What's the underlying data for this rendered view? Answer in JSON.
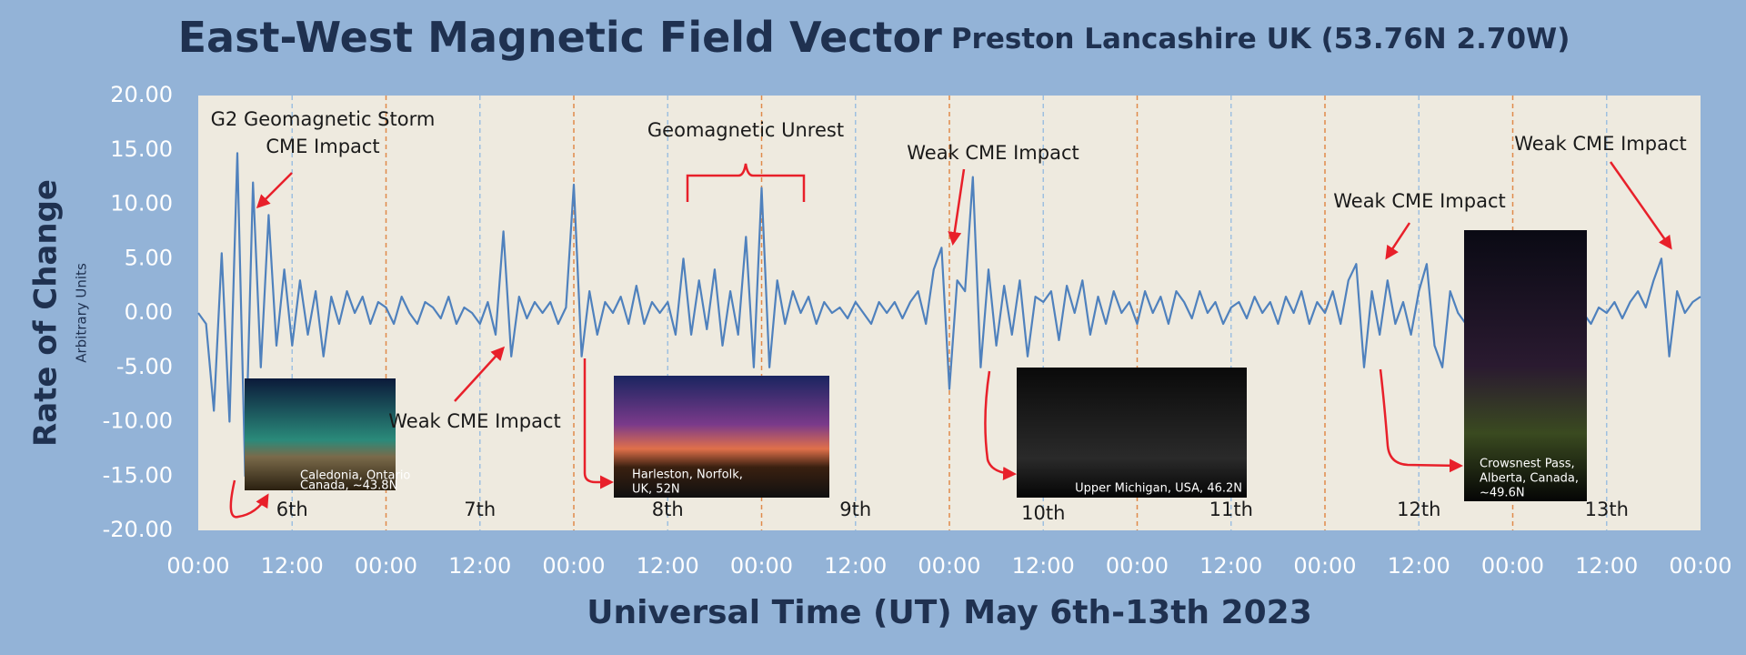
{
  "chart_data": {
    "type": "line",
    "title": "East-West Magnetic Field Vector",
    "subtitle": "Preston Lancashire UK (53.76N 2.70W)",
    "y_label": "Rate of Change",
    "y_sublabel": "Arbitrary Units",
    "x_label": "Universal Time (UT)  May 6th-13th 2023",
    "color": "#4f81bd",
    "grid": true,
    "midnight_grid_color": "#e08a4a",
    "noon_grid_color": "#9ec0e0",
    "ylim": [
      -20,
      20
    ],
    "yticks": [
      {
        "value": 20,
        "label": "20.00"
      },
      {
        "value": 15,
        "label": "15.00"
      },
      {
        "value": 10,
        "label": "10.00"
      },
      {
        "value": 5,
        "label": "5.00"
      },
      {
        "value": 0,
        "label": "0.00"
      },
      {
        "value": -5,
        "label": "-5.00"
      },
      {
        "value": -10,
        "label": "-10.00"
      },
      {
        "value": -15,
        "label": "-15.00"
      },
      {
        "value": -20,
        "label": "-20.00"
      }
    ],
    "xlim": [
      0,
      192
    ],
    "xticks": [
      {
        "value": 0,
        "label": "00:00"
      },
      {
        "value": 12,
        "label": "12:00"
      },
      {
        "value": 24,
        "label": "00:00"
      },
      {
        "value": 36,
        "label": "12:00"
      },
      {
        "value": 48,
        "label": "00:00"
      },
      {
        "value": 60,
        "label": "12:00"
      },
      {
        "value": 72,
        "label": "00:00"
      },
      {
        "value": 84,
        "label": "12:00"
      },
      {
        "value": 96,
        "label": "00:00"
      },
      {
        "value": 108,
        "label": "12:00"
      },
      {
        "value": 120,
        "label": "00:00"
      },
      {
        "value": 132,
        "label": "12:00"
      },
      {
        "value": 144,
        "label": "00:00"
      },
      {
        "value": 156,
        "label": "12:00"
      },
      {
        "value": 168,
        "label": "00:00"
      },
      {
        "value": 180,
        "label": "12:00"
      },
      {
        "value": 192,
        "label": "00:00"
      }
    ],
    "day_labels": [
      "6th",
      "7th",
      "8th",
      "9th",
      "10th",
      "11th",
      "12th",
      "13th"
    ],
    "x": [
      0,
      1,
      2,
      3,
      4,
      5,
      6,
      7,
      8,
      9,
      10,
      11,
      12,
      13,
      14,
      15,
      16,
      17,
      18,
      19,
      20,
      21,
      22,
      23,
      24,
      25,
      26,
      27,
      28,
      29,
      30,
      31,
      32,
      33,
      34,
      35,
      36,
      37,
      38,
      39,
      40,
      41,
      42,
      43,
      44,
      45,
      46,
      47,
      48,
      49,
      50,
      51,
      52,
      53,
      54,
      55,
      56,
      57,
      58,
      59,
      60,
      61,
      62,
      63,
      64,
      65,
      66,
      67,
      68,
      69,
      70,
      71,
      72,
      73,
      74,
      75,
      76,
      77,
      78,
      79,
      80,
      81,
      82,
      83,
      84,
      85,
      86,
      87,
      88,
      89,
      90,
      91,
      92,
      93,
      94,
      95,
      96,
      97,
      98,
      99,
      100,
      101,
      102,
      103,
      104,
      105,
      106,
      107,
      108,
      109,
      110,
      111,
      112,
      113,
      114,
      115,
      116,
      117,
      118,
      119,
      120,
      121,
      122,
      123,
      124,
      125,
      126,
      127,
      128,
      129,
      130,
      131,
      132,
      133,
      134,
      135,
      136,
      137,
      138,
      139,
      140,
      141,
      142,
      143,
      144,
      145,
      146,
      147,
      148,
      149,
      150,
      151,
      152,
      153,
      154,
      155,
      156,
      157,
      158,
      159,
      160,
      161,
      162,
      163,
      164,
      165,
      166,
      167,
      168,
      169,
      170,
      171,
      172,
      173,
      174,
      175,
      176,
      177,
      178,
      179,
      180,
      181,
      182,
      183,
      184,
      185,
      186,
      187,
      188,
      189,
      190,
      191,
      192
    ],
    "values": [
      0,
      -1,
      -9,
      5.5,
      -10,
      14.7,
      -15,
      12,
      -5,
      9,
      -3,
      4,
      -3,
      3,
      -2,
      2,
      -4,
      1.5,
      -1,
      2,
      0,
      1.5,
      -1,
      1,
      0.5,
      -1,
      1.5,
      0,
      -1,
      1,
      0.5,
      -0.5,
      1.5,
      -1,
      0.5,
      0,
      -1,
      1,
      -2,
      7.5,
      -4,
      1.5,
      -0.5,
      1,
      0,
      1,
      -1,
      0.5,
      11.8,
      -4,
      2,
      -2,
      1,
      0,
      1.5,
      -1,
      2.5,
      -1,
      1,
      0,
      1,
      -2,
      5,
      -2,
      3,
      -1.5,
      4,
      -3,
      2,
      -2,
      7,
      -5,
      11.5,
      -5,
      3,
      -1,
      2,
      0,
      1.5,
      -1,
      1,
      0,
      0.5,
      -0.5,
      1,
      0,
      -1,
      1,
      0,
      1,
      -0.5,
      1,
      2,
      -1,
      4,
      6,
      -7,
      3,
      2,
      12.5,
      -5,
      4,
      -3,
      2.5,
      -2,
      3,
      -4,
      1.5,
      1,
      2,
      -2.5,
      2.5,
      0,
      3,
      -2,
      1.5,
      -1,
      2,
      0,
      1,
      -1,
      2,
      0,
      1.5,
      -1,
      2,
      1,
      -0.5,
      2,
      0,
      1,
      -1,
      0.5,
      1,
      -0.5,
      1.5,
      0,
      1,
      -1,
      1.5,
      0,
      2,
      -1,
      1,
      0,
      2,
      -1,
      3,
      4.5,
      -5,
      2,
      -2,
      3,
      -1,
      1,
      -2,
      2,
      4.5,
      -3,
      -5,
      2,
      0,
      -1,
      1.5,
      0,
      1,
      -0.5,
      0.5,
      -1,
      0,
      0.5,
      -0.5,
      0,
      1,
      -0.5,
      0.5,
      1,
      0,
      -1,
      0.5,
      0,
      1,
      -0.5,
      1,
      2,
      0.5,
      3,
      5,
      -4,
      2,
      0,
      1,
      1.5
    ],
    "annotations": [
      {
        "lines": [
          "G2 Geomagnetic Storm",
          "CME Impact"
        ]
      },
      {
        "lines": [
          "Weak CME Impact"
        ]
      },
      {
        "lines": [
          "Geomagnetic Unrest"
        ]
      },
      {
        "lines": [
          "Weak CME Impact"
        ]
      },
      {
        "lines": [
          "Weak CME Impact"
        ]
      },
      {
        "lines": [
          "Weak CME Impact"
        ]
      }
    ],
    "photos": [
      {
        "lines": [
          "Caledonia, Ontario",
          "Canada, ~43.8N"
        ]
      },
      {
        "lines": [
          "Harleston, Norfolk,",
          "UK, 52N"
        ]
      },
      {
        "lines": [
          "Upper Michigan, USA, 46.2N"
        ]
      },
      {
        "lines": [
          "Crowsnest Pass,",
          "Alberta, Canada,",
          "~49.6N"
        ]
      }
    ]
  }
}
